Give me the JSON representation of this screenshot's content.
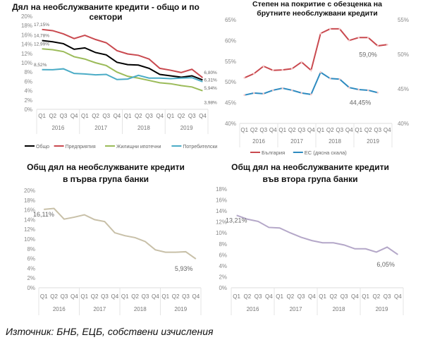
{
  "source": "Източник: БНБ, ЕЦБ, собствени изчисления",
  "chart_data": [
    {
      "type": "line",
      "title": [
        "Дял на необслужваните кредити - общо и по",
        "сектори"
      ],
      "quarters": [
        "Q1",
        "Q2",
        "Q3",
        "Q4"
      ],
      "years": [
        "2016",
        "2017",
        "2018",
        "2019"
      ],
      "yticks": [
        "0%",
        "2%",
        "4%",
        "6%",
        "8%",
        "10%",
        "12%",
        "14%",
        "16%",
        "18%",
        "20%"
      ],
      "ylim": [
        0,
        20
      ],
      "legend": "bottom",
      "grid": false,
      "series": [
        {
          "name": "Общо",
          "color": "#000000",
          "values": [
            14.78,
            14.5,
            14.1,
            12.9,
            13.2,
            12.2,
            11.7,
            10.1,
            9.6,
            9.5,
            8.8,
            7.5,
            7.2,
            6.9,
            7.2,
            6.31
          ],
          "labels": [
            "14,78%",
            "6,31%"
          ]
        },
        {
          "name": "Предприятия",
          "color": "#c9494f",
          "values": [
            17.15,
            16.9,
            16.2,
            15.2,
            15.9,
            15.0,
            14.3,
            12.6,
            11.9,
            11.6,
            10.8,
            8.8,
            8.4,
            7.9,
            8.6,
            6.8
          ],
          "labels": [
            "17,15%",
            "6,80%"
          ]
        },
        {
          "name": "Жилищни ипотечни",
          "color": "#9bbb59",
          "values": [
            12.99,
            12.8,
            12.4,
            11.3,
            10.8,
            10.0,
            9.4,
            8.0,
            7.1,
            6.7,
            6.2,
            5.7,
            5.5,
            5.1,
            4.8,
            3.98
          ],
          "labels": [
            "12,99%",
            "3,98%"
          ]
        },
        {
          "name": "Потребителски",
          "color": "#4bacc6",
          "values": [
            8.52,
            8.5,
            8.7,
            7.7,
            7.6,
            7.4,
            7.5,
            6.4,
            6.5,
            7.3,
            6.7,
            6.7,
            6.6,
            6.7,
            6.8,
            5.94
          ],
          "labels": [
            "8,52%",
            "5,94%"
          ]
        }
      ]
    },
    {
      "type": "line",
      "title": [
        "Степен на покритие с обезценка на",
        "брутните необслужвани кредити"
      ],
      "quarters": [
        "Q1",
        "Q2",
        "Q3",
        "Q4"
      ],
      "years": [
        "2016",
        "2017",
        "2018",
        "2019"
      ],
      "yticks": [
        "40%",
        "45%",
        "50%",
        "55%",
        "60%",
        "65%"
      ],
      "ylim": [
        40,
        65
      ],
      "y2ticks": [
        "40%",
        "45%",
        "50%",
        "55%"
      ],
      "y2lim": [
        40,
        55
      ],
      "legend": "bottom",
      "grid": false,
      "series": [
        {
          "name": "България",
          "color": "#c9494f",
          "values": [
            51.0,
            52.0,
            53.8,
            52.8,
            52.9,
            53.2,
            54.8,
            52.8,
            61.7,
            62.8,
            62.8,
            60.0,
            60.7,
            60.7,
            58.7,
            59.0
          ],
          "labels": [
            "",
            "59,0%"
          ]
        },
        {
          "name": "ЕС (дясна скала)",
          "color": "#2e8bc0",
          "axis": "right",
          "values": [
            44.1,
            44.4,
            44.3,
            44.8,
            45.1,
            44.8,
            44.4,
            44.2,
            47.4,
            46.5,
            46.4,
            45.2,
            44.9,
            44.8,
            44.45
          ],
          "labels": [
            "",
            "44,45%"
          ]
        }
      ]
    },
    {
      "type": "line",
      "title": [
        "Общ дял на необслужваните кредити",
        "в първа група банки"
      ],
      "quarters": [
        "Q1",
        "Q2",
        "Q3",
        "Q4"
      ],
      "years": [
        "2016",
        "2017",
        "2018",
        "2019"
      ],
      "yticks": [
        "0%",
        "2%",
        "4%",
        "6%",
        "8%",
        "10%",
        "12%",
        "14%",
        "16%",
        "18%",
        "20%"
      ],
      "ylim": [
        0,
        20
      ],
      "grid": false,
      "series": [
        {
          "color": "#c8c0a8",
          "values": [
            16.11,
            16.3,
            14.1,
            14.5,
            15.0,
            14.0,
            13.6,
            11.3,
            10.7,
            10.3,
            9.5,
            7.8,
            7.3,
            7.3,
            7.4,
            5.93
          ],
          "labels": [
            "16,11%",
            "5,93%"
          ]
        }
      ]
    },
    {
      "type": "line",
      "title": [
        "Общ дял на необслужваните кредити",
        "във втора група банки"
      ],
      "quarters": [
        "Q1",
        "Q2",
        "Q3",
        "Q4"
      ],
      "years": [
        "2016",
        "2017",
        "2018",
        "2019"
      ],
      "yticks": [
        "0%",
        "2%",
        "4%",
        "6%",
        "8%",
        "10%",
        "12%",
        "14%",
        "16%",
        "18%"
      ],
      "ylim": [
        0,
        18
      ],
      "grid": false,
      "series": [
        {
          "color": "#b4a7c8",
          "values": [
            13.21,
            12.5,
            12.1,
            11.0,
            10.9,
            10.0,
            9.2,
            8.6,
            8.2,
            8.2,
            7.8,
            7.1,
            7.1,
            6.5,
            7.4,
            6.05
          ],
          "labels": [
            "13,21%",
            "6,05%"
          ]
        }
      ]
    }
  ]
}
